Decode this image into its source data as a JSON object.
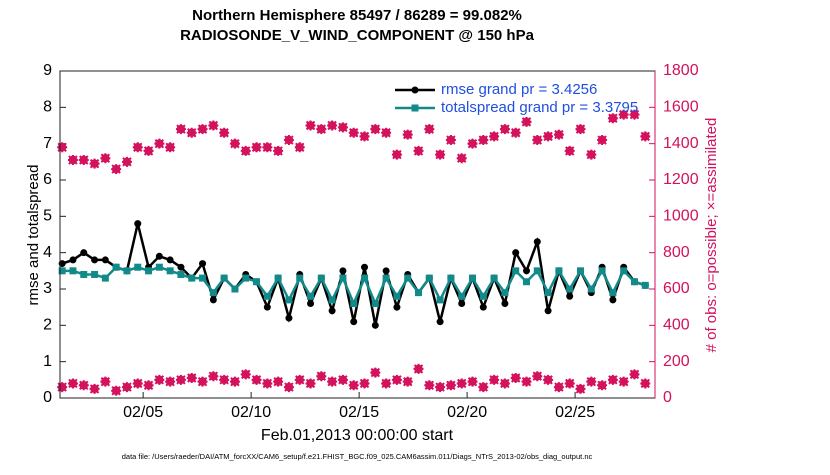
{
  "chart_data": {
    "type": "line",
    "title": "Northern Hemisphere 85497 / 86289 = 99.082%",
    "subtitle": "RADIOSONDE_V_WIND_COMPONENT @ 150 hPa",
    "xlabel": "Feb.01,2013 00:00:00 start",
    "ylabel": "rmse and totalspread",
    "y2label": "# of obs: o=possible; ×=assimilated",
    "footnote": "data file: /Users/raeder/DAI/ATM_forcXX/CAM6_setup/f.e21.FHIST_BGC.f09_025.CAM6assim.011/Diags_NTrS_2013-02/obs_diag_output.nc",
    "legend_position": "upper right",
    "legend_text_color": "#1f4fe0",
    "xlim": [
      1.15,
      28.7
    ],
    "xticks": [
      {
        "value": 5,
        "label": "02/05"
      },
      {
        "value": 10,
        "label": "02/10"
      },
      {
        "value": 15,
        "label": "02/15"
      },
      {
        "value": 20,
        "label": "02/20"
      },
      {
        "value": 25,
        "label": "02/25"
      }
    ],
    "ylim": [
      0,
      9
    ],
    "yticks": [
      0,
      1,
      2,
      3,
      4,
      5,
      6,
      7,
      8,
      9
    ],
    "y2lim": [
      0,
      1800
    ],
    "y2ticks": [
      0,
      200,
      400,
      600,
      800,
      1000,
      1200,
      1400,
      1600,
      1800
    ],
    "x": [
      1.25,
      1.75,
      2.25,
      2.75,
      3.25,
      3.75,
      4.25,
      4.75,
      5.25,
      5.75,
      6.25,
      6.75,
      7.25,
      7.75,
      8.25,
      8.75,
      9.25,
      9.75,
      10.25,
      10.75,
      11.25,
      11.75,
      12.25,
      12.75,
      13.25,
      13.75,
      14.25,
      14.75,
      15.25,
      15.75,
      16.25,
      16.75,
      17.25,
      17.75,
      18.25,
      18.75,
      19.25,
      19.75,
      20.25,
      20.75,
      21.25,
      21.75,
      22.25,
      22.75,
      23.25,
      23.75,
      24.25,
      24.75,
      25.25,
      25.75,
      26.25,
      26.75,
      27.25,
      27.75,
      28.25
    ],
    "series": [
      {
        "name": "rmse grand pr = 3.4256",
        "color": "#000000",
        "marker": "circle",
        "values": [
          3.7,
          3.8,
          4.0,
          3.8,
          3.8,
          3.6,
          3.5,
          4.8,
          3.6,
          3.9,
          3.8,
          3.6,
          3.3,
          3.7,
          2.7,
          3.3,
          3.0,
          3.4,
          3.2,
          2.5,
          3.3,
          2.2,
          3.4,
          2.6,
          3.3,
          2.4,
          3.5,
          2.1,
          3.6,
          2.0,
          3.5,
          2.5,
          3.4,
          2.9,
          3.3,
          2.1,
          3.3,
          2.6,
          3.3,
          2.5,
          3.3,
          2.6,
          4.0,
          3.5,
          4.3,
          2.4,
          3.5,
          2.8,
          3.5,
          2.9,
          3.6,
          2.7,
          3.6,
          3.2,
          3.1
        ]
      },
      {
        "name": "totalspread grand pr = 3.3795",
        "color": "#138a8a",
        "marker": "square",
        "values": [
          3.5,
          3.5,
          3.4,
          3.4,
          3.3,
          3.6,
          3.5,
          3.6,
          3.5,
          3.6,
          3.5,
          3.4,
          3.3,
          3.3,
          2.9,
          3.3,
          3.0,
          3.3,
          3.2,
          2.8,
          3.3,
          2.7,
          3.3,
          2.8,
          3.3,
          2.7,
          3.3,
          2.6,
          3.3,
          2.6,
          3.3,
          2.8,
          3.3,
          2.9,
          3.3,
          2.7,
          3.3,
          2.8,
          3.3,
          2.8,
          3.3,
          2.9,
          3.5,
          3.2,
          3.5,
          2.9,
          3.5,
          3.0,
          3.5,
          3.0,
          3.5,
          2.9,
          3.5,
          3.2,
          3.1
        ]
      },
      {
        "color": "#d3115c",
        "marker": "star",
        "axis": "y2",
        "values": [
          1380,
          1310,
          1310,
          1290,
          1320,
          1260,
          1300,
          1380,
          1360,
          1400,
          1380,
          1480,
          1460,
          1480,
          1500,
          1460,
          1400,
          1360,
          1380,
          1380,
          1360,
          1420,
          1380,
          1500,
          1480,
          1500,
          1490,
          1460,
          1440,
          1480,
          1460,
          1340,
          1450,
          1360,
          1480,
          1340,
          1420,
          1320,
          1400,
          1420,
          1440,
          1480,
          1460,
          1520,
          1420,
          1440,
          1450,
          1360,
          1480,
          1340,
          1420,
          1540,
          1560,
          1560,
          1440
        ]
      },
      {
        "color": "#d3115c",
        "marker": "star",
        "axis": "y2",
        "values": [
          60,
          80,
          70,
          50,
          90,
          40,
          60,
          80,
          70,
          100,
          90,
          100,
          110,
          90,
          120,
          100,
          90,
          130,
          100,
          80,
          90,
          60,
          100,
          80,
          120,
          90,
          100,
          70,
          80,
          140,
          80,
          100,
          90,
          160,
          70,
          60,
          70,
          80,
          90,
          60,
          100,
          80,
          110,
          90,
          120,
          100,
          60,
          80,
          50,
          90,
          70,
          100,
          90,
          130,
          80
        ]
      }
    ]
  }
}
